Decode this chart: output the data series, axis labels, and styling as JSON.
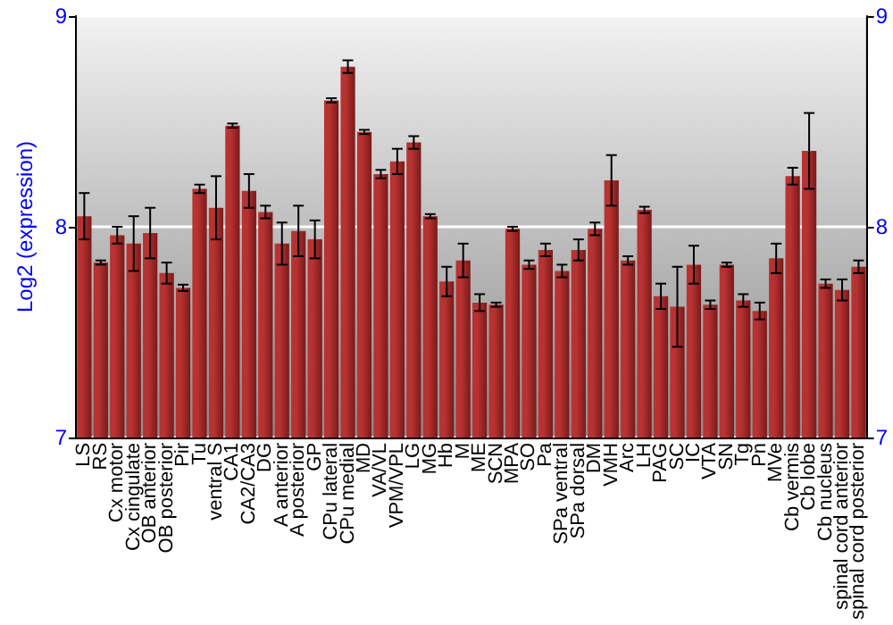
{
  "chart_data": {
    "type": "bar",
    "ylabel": "Log2 (expression)",
    "categories": [
      "LS",
      "RS",
      "Cx motor",
      "Cx cingulate",
      "OB anterior",
      "OB posterior",
      "Pir",
      "Tu",
      "ventral S",
      "CA1",
      "CA2/CA3",
      "DG",
      "A anterior",
      "A posterior",
      "GP",
      "CPu lateral",
      "CPu medial",
      "MD",
      "VA/VL",
      "VPM/VPL",
      "LG",
      "MG",
      "Hb",
      "M",
      "ME",
      "SCN",
      "MPA",
      "SO",
      "Pa",
      "SPa ventral",
      "SPa dorsal",
      "DM",
      "VMH",
      "Arc",
      "LH",
      "PAG",
      "SC",
      "IC",
      "VTA",
      "SN",
      "Tg",
      "Pn",
      "MVe",
      "Cb vermis",
      "Cb lobe",
      "Cb nucleus",
      "spinal cord anterior",
      "spinal cord posterior"
    ],
    "values": [
      8.05,
      7.83,
      7.96,
      7.92,
      7.97,
      7.78,
      7.71,
      8.18,
      8.09,
      8.48,
      8.17,
      8.07,
      7.92,
      7.98,
      7.94,
      8.6,
      8.76,
      8.45,
      8.25,
      8.31,
      8.4,
      8.05,
      7.74,
      7.84,
      7.64,
      7.63,
      7.99,
      7.82,
      7.89,
      7.79,
      7.89,
      7.99,
      8.22,
      7.84,
      8.08,
      7.67,
      7.62,
      7.82,
      7.63,
      7.82,
      7.65,
      7.6,
      7.85,
      8.24,
      8.36,
      7.73,
      7.7,
      7.81
    ],
    "errors": [
      0.11,
      0.01,
      0.04,
      0.13,
      0.12,
      0.05,
      0.015,
      0.02,
      0.15,
      0.01,
      0.08,
      0.03,
      0.1,
      0.12,
      0.09,
      0.01,
      0.03,
      0.01,
      0.02,
      0.06,
      0.03,
      0.01,
      0.07,
      0.08,
      0.04,
      0.01,
      0.01,
      0.02,
      0.03,
      0.03,
      0.05,
      0.03,
      0.12,
      0.02,
      0.015,
      0.06,
      0.19,
      0.09,
      0.02,
      0.01,
      0.03,
      0.04,
      0.07,
      0.04,
      0.18,
      0.02,
      0.05,
      0.03
    ],
    "color": "#b83232",
    "ylim": [
      7,
      9
    ],
    "yticks": [
      7,
      8,
      9
    ],
    "y2lim": [
      7,
      9
    ],
    "y2ticks": [
      7,
      8,
      9
    ],
    "grid": "y"
  }
}
